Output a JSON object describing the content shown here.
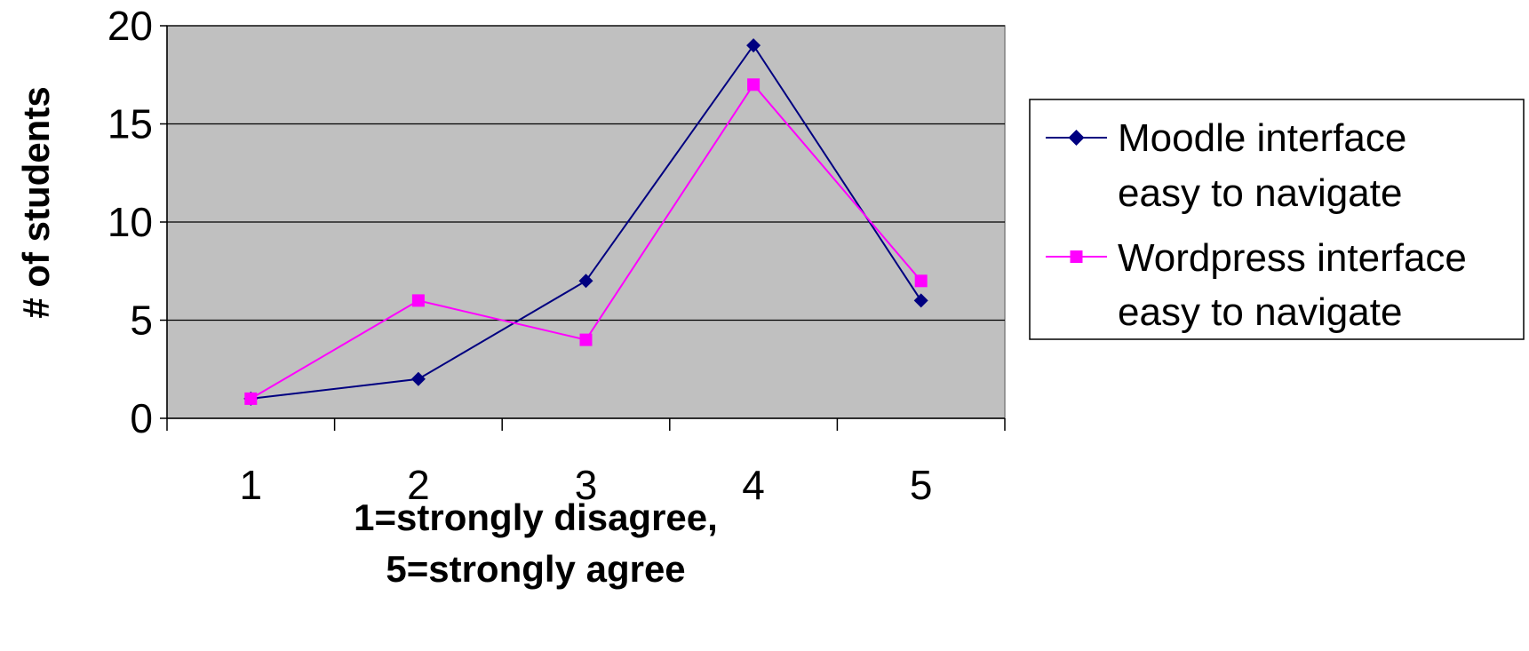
{
  "chart_data": {
    "type": "line",
    "categories": [
      "1",
      "2",
      "3",
      "4",
      "5"
    ],
    "series": [
      {
        "name_lines": [
          "Moodle interface",
          "easy to navigate"
        ],
        "values": [
          1,
          2,
          7,
          19,
          6
        ],
        "color": "#000080",
        "marker": "diamond"
      },
      {
        "name_lines": [
          "Wordpress interface",
          "easy to navigate"
        ],
        "values": [
          1,
          6,
          4,
          17,
          7
        ],
        "color": "#FF00FF",
        "marker": "square"
      }
    ],
    "ylabel": "# of students",
    "xlabel_lines": [
      "1=strongly disagree,",
      "5=strongly agree"
    ],
    "ylim": [
      0,
      20
    ],
    "yticks": [
      0,
      5,
      10,
      15,
      20
    ],
    "grid": true,
    "plot_background": "#C0C0C0",
    "legend_position": "right"
  }
}
